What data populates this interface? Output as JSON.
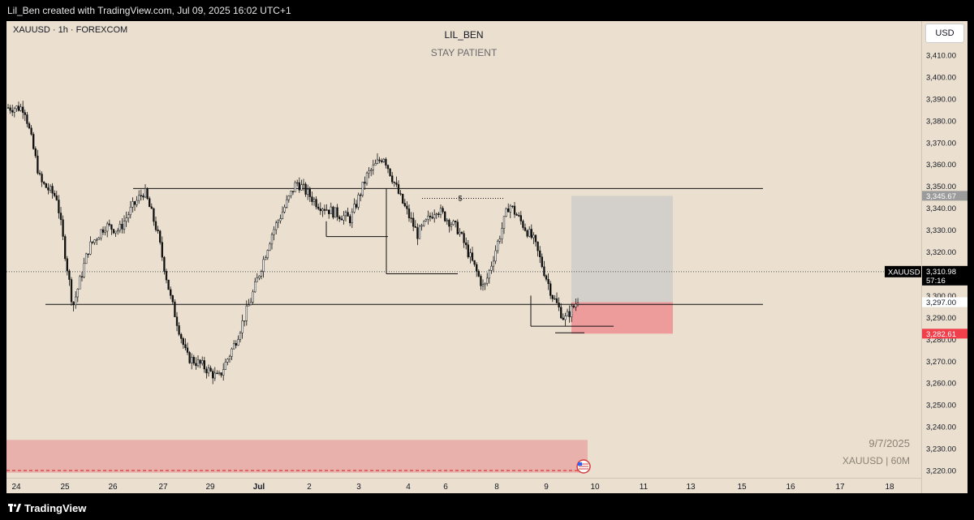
{
  "header": {
    "created_by": "Lil_Ben created with TradingView.com, Jul 09, 2025 16:02 UTC+1"
  },
  "chart": {
    "symbol_label": "XAUUSD · 1h · FOREXCOM",
    "title": "LIL_BEN",
    "subtitle": "STAY PATIENT",
    "currency_button": "USD",
    "watermark_date": "9/7/2025",
    "watermark_symbol": "XAUUSD | 60M",
    "annotation_dollar": "$"
  },
  "footer": {
    "brand": "TradingView"
  },
  "chart_data": {
    "type": "candlestick",
    "ylim": [
      3215,
      3418
    ],
    "y_ticks": [
      3220,
      3230,
      3240,
      3250,
      3260,
      3270,
      3280,
      3290,
      3300,
      3310,
      3320,
      3330,
      3340,
      3350,
      3360,
      3370,
      3380,
      3390,
      3400,
      3410
    ],
    "y_tick_labels": [
      "3,220.00",
      "3,230.00",
      "3,240.00",
      "3,250.00",
      "3,260.00",
      "3,270.00",
      "3,280.00",
      "3,290.00",
      "3,300.00",
      "3,310.00",
      "3,320.00",
      "3,330.00",
      "3,340.00",
      "3,350.00",
      "3,360.00",
      "3,370.00",
      "3,380.00",
      "3,390.00",
      "3,400.00",
      "3,410.00"
    ],
    "x_tick_labels": [
      "24",
      "25",
      "26",
      "27",
      "29",
      "Jul",
      "2",
      "3",
      "4",
      "6",
      "8",
      "9",
      "10",
      "11",
      "13",
      "15",
      "16",
      "17",
      "18"
    ],
    "close_path": [
      [
        "24",
        3386
      ],
      [
        "24",
        3352
      ],
      [
        "24",
        3345
      ],
      [
        "25",
        3295
      ],
      [
        "25",
        3322
      ],
      [
        "25",
        3332
      ],
      [
        "26",
        3330
      ],
      [
        "26",
        3340
      ],
      [
        "26",
        3348
      ],
      [
        "26",
        3330
      ],
      [
        "27",
        3298
      ],
      [
        "27",
        3272
      ],
      [
        "27",
        3268
      ],
      [
        "29",
        3262
      ],
      [
        "29",
        3278
      ],
      [
        "29",
        3298
      ],
      [
        "Jul",
        3328
      ],
      [
        "Jul",
        3352
      ],
      [
        "2",
        3342
      ],
      [
        "2",
        3338
      ],
      [
        "2",
        3335
      ],
      [
        "3",
        3355
      ],
      [
        "3",
        3364
      ],
      [
        "3",
        3345
      ],
      [
        "4",
        3328
      ],
      [
        "4",
        3340
      ],
      [
        "6",
        3330
      ],
      [
        "6",
        3303
      ],
      [
        "8",
        3342
      ],
      [
        "8",
        3325
      ],
      [
        "9",
        3300
      ],
      [
        "9",
        3289
      ],
      [
        "9",
        3297
      ],
      [
        "9",
        3311
      ]
    ],
    "horizontal_levels": [
      {
        "price": 3349
      },
      {
        "price": 3296
      },
      {
        "price": 3327
      },
      {
        "price": 3310
      }
    ],
    "current_price": {
      "symbol": "XAUUSD",
      "value": "3,310.98",
      "countdown": "57:16"
    },
    "price_labels": [
      {
        "value": "3,345.67"
      },
      {
        "value": "3,297.00"
      },
      {
        "value": "3,282.61"
      }
    ],
    "position_tool": {
      "target": 3345.67,
      "entry": 3297.0,
      "stop": 3282.61
    },
    "demand_zone": {
      "from": 3219,
      "to": 3234
    }
  }
}
